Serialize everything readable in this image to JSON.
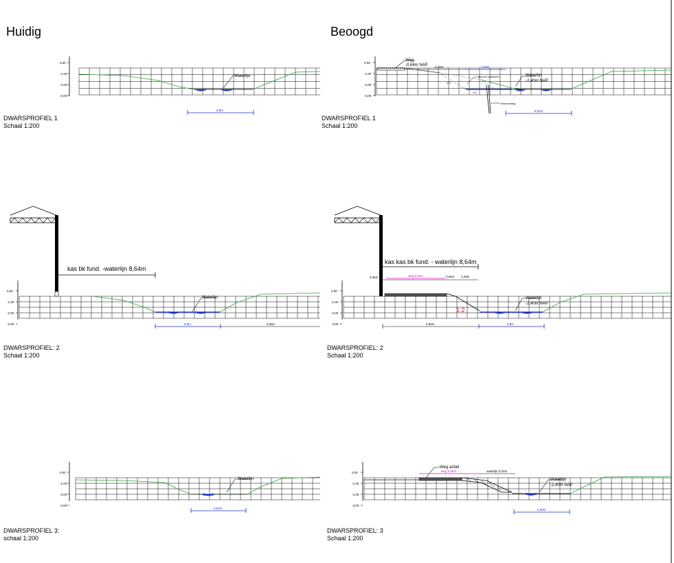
{
  "headings": {
    "current": "Huidig",
    "planned": "Beoogd"
  },
  "axis_ticks": [
    "0,00",
    "-1,00",
    "-2,00",
    "-3,00"
  ],
  "profiles": {
    "p1_current": {
      "title": "DWARSPROFIEL 1",
      "scale": "Schaal 1:200",
      "water_label": "Waterlijn",
      "dim_label": "6,9m"
    },
    "p1_planned": {
      "title": "DWARSPROFIEL 1",
      "scale": "Schaal 1:200",
      "road_label": "Weg",
      "road_level": "-0,64m NAP",
      "dim_road": "4,45m",
      "dim_mid": "3,50m",
      "talud_label": "talud en plasberm",
      "beschoeiing": "beschoeiing",
      "slope_a": "1:3",
      "slope_b": "1:5",
      "water_label": "Waterlijn",
      "water_level": "-2,40m NAP",
      "dim_bottom": "6,91m"
    },
    "p2_current": {
      "title": "DWARSPROFIEL: 2",
      "scale": "Schaal 1:200",
      "kas_label": "kas bk fund. -waterlijn 8,64m",
      "water_label": "Waterlijn",
      "dim_left": "5,9m",
      "dim_right": "6,65m"
    },
    "p2_planned": {
      "title": "DWARSPROFIEL: 2",
      "scale": "Schaal 1:200",
      "kas_label": "kas kas bk fund. - waterlijn 8,64m",
      "dim_a": "0,30m",
      "dim_road": "weg 5,50m",
      "dim_b": "0,56m",
      "dim_c": "2,29m",
      "slope": "1:2",
      "water_label": "Waterlijn",
      "water_level": "-2,40m NAP",
      "dim_left": "6,65m",
      "dim_right": "5,9m"
    },
    "p3_current": {
      "title": "DWARSPROFIEL 3:",
      "scale": "schaal 1:200",
      "water_label": "Waterlijn",
      "dim_label": "6,01m"
    },
    "p3_planned": {
      "title": "DWARSPROFIEL: 3",
      "scale": "Schaal 1:200",
      "road_label": "Weg asfalt",
      "dim_road": "weg 5,50m",
      "dim_water": "waterlijn 3,02m",
      "water_label": "Waterlijn",
      "water_level": "-2,40m NAP",
      "dim_bottom": "6,00m"
    }
  },
  "colors": {
    "line": "#000000",
    "grid": "#000000",
    "terrain": "#2e9e3a",
    "water": "#1a2bd1",
    "dimension": "#1a2bd1",
    "road_dim": "#c81ac8",
    "slope_text": "#e01a1a",
    "kas": "#000000"
  }
}
